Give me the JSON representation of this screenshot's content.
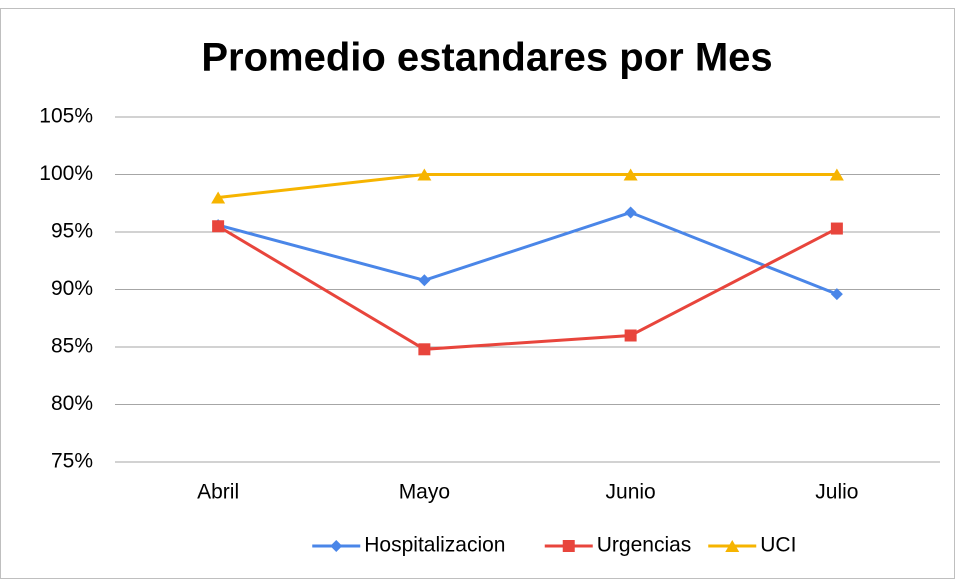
{
  "chart_data": {
    "type": "line",
    "title": "Promedio estandares por Mes",
    "categories": [
      "Abril",
      "Mayo",
      "Junio",
      "Julio"
    ],
    "series": [
      {
        "name": "Hospitalizacion",
        "color": "#4a86e8",
        "marker": "diamond",
        "values": [
          95.6,
          90.8,
          96.7,
          89.6
        ]
      },
      {
        "name": "Urgencias",
        "color": "#e8453c",
        "marker": "square",
        "values": [
          95.5,
          84.8,
          86.0,
          95.3
        ]
      },
      {
        "name": "UCI",
        "color": "#f6b400",
        "marker": "triangle",
        "values": [
          98.0,
          100,
          100,
          100
        ]
      }
    ],
    "ylim": [
      75,
      105
    ],
    "yticks": [
      {
        "value": 75,
        "label": "75%"
      },
      {
        "value": 80,
        "label": "80%"
      },
      {
        "value": 85,
        "label": "85%"
      },
      {
        "value": 90,
        "label": "90%"
      },
      {
        "value": 95,
        "label": "95%"
      },
      {
        "value": 100,
        "label": "100%"
      },
      {
        "value": 105,
        "label": "105%"
      }
    ],
    "grid": true,
    "legend": "bottom"
  }
}
